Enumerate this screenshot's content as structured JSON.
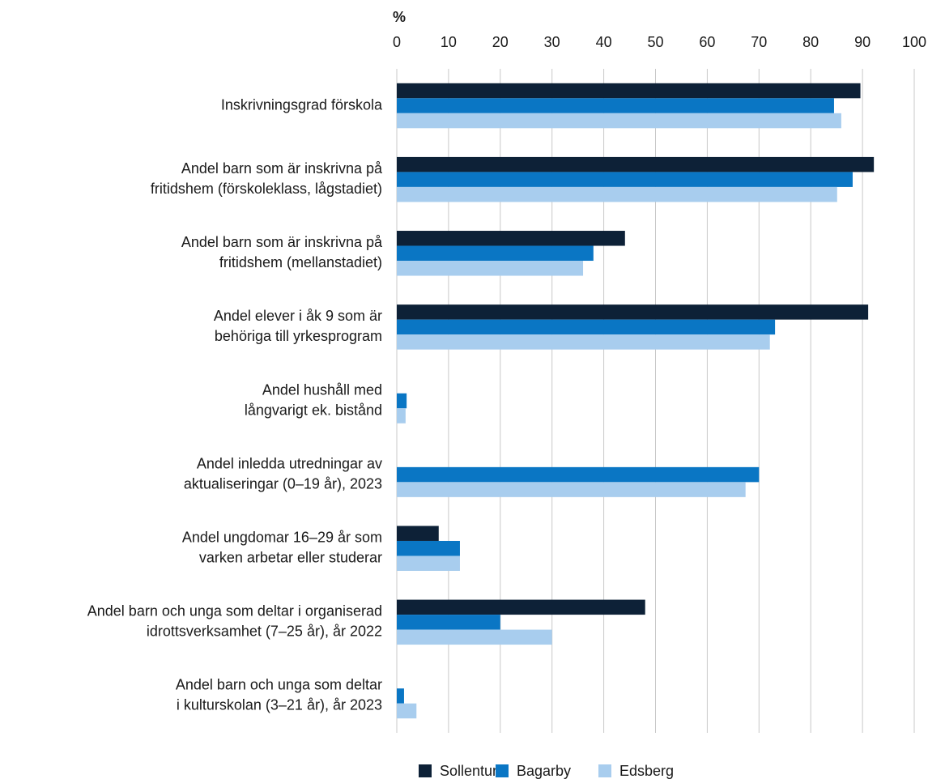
{
  "chart_data": {
    "type": "bar",
    "orientation": "horizontal",
    "axis_label": "%",
    "categories": [
      [
        "Inskrivningsgrad förskola"
      ],
      [
        "Andel barn som är inskrivna på",
        "fritidshem (förskoleklass, lågstadiet)"
      ],
      [
        "Andel barn som är inskrivna på",
        "fritidshem (mellanstadiet)"
      ],
      [
        "Andel elever i åk 9 som är",
        "behöriga till yrkesprogram"
      ],
      [
        "Andel hushåll med",
        "långvarigt ek. bistånd"
      ],
      [
        "Andel inledda utredningar av",
        "aktualiseringar (0–19 år), 2023"
      ],
      [
        "Andel ungdomar 16–29 år som",
        "varken arbetar eller studerar"
      ],
      [
        "Andel barn och unga som deltar i organiserad",
        "idrottsverksamhet (7–25 år), år 2022"
      ],
      [
        "Andel barn och unga som deltar",
        "i kulturskolan (3–21 år), år 2023"
      ]
    ],
    "series": [
      {
        "name": "Sollentuna",
        "color": "#0d2137",
        "values": [
          89.6,
          92.2,
          44.1,
          91.1,
          null,
          null,
          8.1,
          48.0,
          null
        ]
      },
      {
        "name": "Bagarby",
        "color": "#0a76c4",
        "values": [
          84.5,
          88.1,
          38.0,
          73.1,
          1.9,
          70.0,
          12.2,
          20.0,
          1.4
        ]
      },
      {
        "name": "Edsberg",
        "color": "#a8cdee",
        "values": [
          85.9,
          85.1,
          36.0,
          72.1,
          1.7,
          67.4,
          12.2,
          30.0,
          3.8
        ]
      }
    ],
    "xlim": [
      0,
      100
    ],
    "xticks": [
      0,
      10,
      20,
      30,
      40,
      50,
      60,
      70,
      80,
      90,
      100
    ],
    "grid": true,
    "legend": "bottom"
  }
}
